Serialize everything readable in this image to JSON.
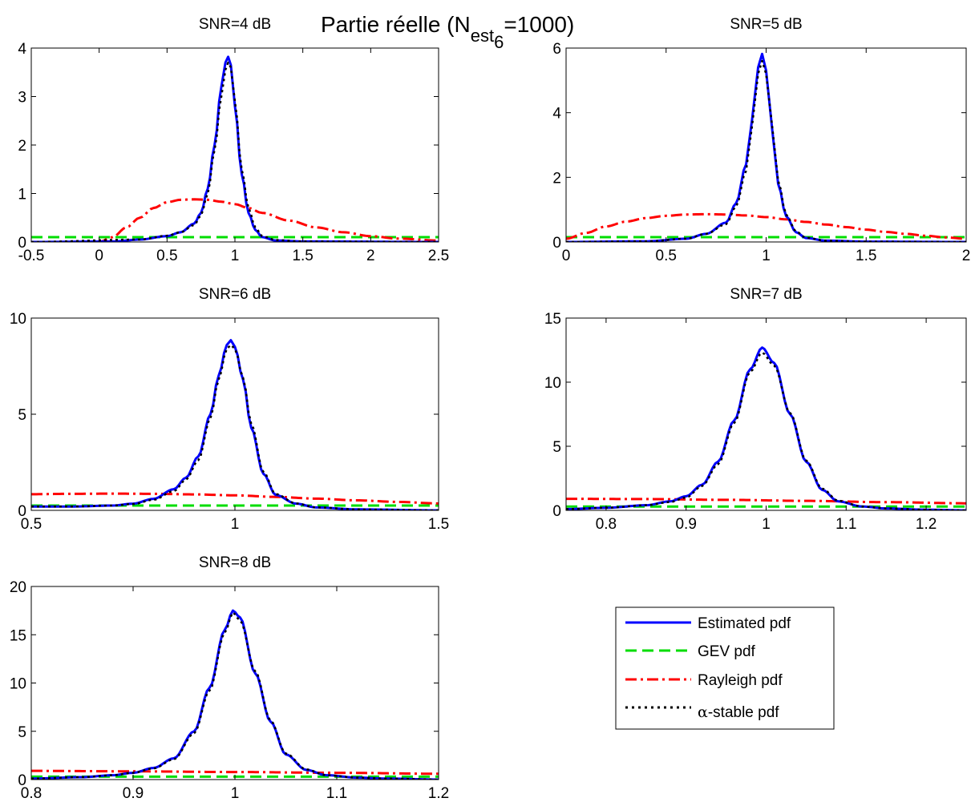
{
  "figure": {
    "suptitle": {
      "main": "Partie réelle (N",
      "sub1": "est",
      "sub2": "6",
      "tail": "=1000)"
    }
  },
  "legend": {
    "entries": [
      {
        "label_pre": "",
        "label": "Estimated pdf",
        "color": "#0000ff",
        "style": "solid"
      },
      {
        "label_pre": "",
        "label": "GEV pdf",
        "color": "#00dd00",
        "style": "dashed"
      },
      {
        "label_pre": "",
        "label": "Rayleigh pdf",
        "color": "#ff0000",
        "style": "dashdot"
      },
      {
        "label_pre": "α",
        "label": "-stable pdf",
        "color": "#000000",
        "style": "dotted"
      }
    ]
  },
  "chart_data": [
    {
      "type": "line",
      "title": "SNR=4 dB",
      "xlim": [
        -0.5,
        2.5
      ],
      "ylim": [
        0,
        4
      ],
      "xticks": [
        -0.5,
        0,
        0.5,
        1,
        1.5,
        2,
        2.5
      ],
      "yticks": [
        0,
        1,
        2,
        3,
        4
      ],
      "peak": {
        "center": 0.95,
        "height": 3.82,
        "width": 0.09
      },
      "series": [
        {
          "name": "Estimated pdf",
          "x": [
            -0.5,
            0.1,
            0.3,
            0.5,
            0.6,
            0.7,
            0.75,
            0.8,
            0.85,
            0.9,
            0.93,
            0.95,
            0.97,
            1.0,
            1.05,
            1.1,
            1.15,
            1.2,
            1.3,
            1.5,
            2.5
          ],
          "y": [
            0,
            0.01,
            0.05,
            0.12,
            0.2,
            0.38,
            0.6,
            1.1,
            2.0,
            3.2,
            3.7,
            3.82,
            3.65,
            2.8,
            1.4,
            0.6,
            0.25,
            0.1,
            0.03,
            0.01,
            0
          ]
        },
        {
          "name": "GEV pdf",
          "x": [
            -0.5,
            1,
            2.5
          ],
          "y": [
            0.1,
            0.1,
            0.1
          ]
        },
        {
          "name": "Rayleigh pdf",
          "x": [
            -0.5,
            0,
            0.1,
            0.2,
            0.3,
            0.4,
            0.5,
            0.6,
            0.7,
            0.8,
            0.9,
            1.0,
            1.1,
            1.2,
            1.4,
            1.6,
            1.8,
            2.0,
            2.2,
            2.5
          ],
          "y": [
            0,
            0,
            0.1,
            0.3,
            0.5,
            0.7,
            0.82,
            0.87,
            0.88,
            0.87,
            0.83,
            0.78,
            0.7,
            0.6,
            0.44,
            0.3,
            0.2,
            0.12,
            0.07,
            0.03
          ]
        },
        {
          "name": "α-stable pdf",
          "x": [
            -0.5,
            0.3,
            0.5,
            0.6,
            0.7,
            0.75,
            0.8,
            0.85,
            0.9,
            0.93,
            0.95,
            0.97,
            1.0,
            1.05,
            1.1,
            1.15,
            1.2,
            1.3,
            1.5,
            2.5
          ],
          "y": [
            0,
            0.05,
            0.13,
            0.2,
            0.35,
            0.55,
            1.0,
            1.9,
            3.0,
            3.55,
            3.7,
            3.6,
            2.9,
            1.5,
            0.7,
            0.3,
            0.12,
            0.04,
            0.01,
            0
          ]
        }
      ]
    },
    {
      "type": "line",
      "title": "SNR=5 dB",
      "xlim": [
        0,
        2
      ],
      "ylim": [
        0,
        6
      ],
      "xticks": [
        0,
        0.5,
        1,
        1.5,
        2
      ],
      "yticks": [
        0,
        2,
        4,
        6
      ],
      "peak": {
        "center": 0.98,
        "height": 5.8,
        "width": 0.06
      },
      "series": [
        {
          "name": "Estimated pdf",
          "x": [
            0,
            0.4,
            0.6,
            0.7,
            0.8,
            0.85,
            0.9,
            0.93,
            0.96,
            0.98,
            1.0,
            1.03,
            1.06,
            1.1,
            1.15,
            1.2,
            1.3,
            1.5,
            2.0
          ],
          "y": [
            0,
            0.02,
            0.1,
            0.25,
            0.6,
            1.2,
            2.4,
            3.8,
            5.4,
            5.82,
            5.3,
            3.5,
            1.8,
            0.8,
            0.3,
            0.12,
            0.04,
            0.01,
            0
          ]
        },
        {
          "name": "GEV pdf",
          "x": [
            0,
            1,
            2
          ],
          "y": [
            0.15,
            0.15,
            0.15
          ]
        },
        {
          "name": "Rayleigh pdf",
          "x": [
            0,
            0.1,
            0.2,
            0.3,
            0.4,
            0.5,
            0.6,
            0.7,
            0.8,
            0.9,
            1.0,
            1.1,
            1.2,
            1.3,
            1.4,
            1.5,
            1.6,
            1.7,
            1.8,
            1.9,
            2.0
          ],
          "y": [
            0.1,
            0.28,
            0.48,
            0.63,
            0.74,
            0.81,
            0.85,
            0.86,
            0.85,
            0.82,
            0.77,
            0.7,
            0.62,
            0.54,
            0.46,
            0.38,
            0.31,
            0.25,
            0.19,
            0.14,
            0.1
          ]
        },
        {
          "name": "α-stable pdf",
          "x": [
            0,
            0.4,
            0.6,
            0.7,
            0.8,
            0.85,
            0.9,
            0.93,
            0.96,
            0.98,
            1.0,
            1.03,
            1.06,
            1.1,
            1.15,
            1.2,
            1.3,
            1.5,
            2.0
          ],
          "y": [
            0,
            0.02,
            0.1,
            0.25,
            0.55,
            1.1,
            2.2,
            3.6,
            5.2,
            5.6,
            5.2,
            3.6,
            1.9,
            0.85,
            0.32,
            0.13,
            0.04,
            0.01,
            0
          ]
        }
      ]
    },
    {
      "type": "line",
      "title": "SNR=6 dB",
      "xlim": [
        0.5,
        1.5
      ],
      "ylim": [
        0,
        10
      ],
      "xticks": [
        0.5,
        1,
        1.5
      ],
      "yticks": [
        0,
        5,
        10
      ],
      "peak": {
        "center": 0.99,
        "height": 8.8,
        "width": 0.04
      },
      "series": [
        {
          "name": "Estimated pdf",
          "x": [
            0.5,
            0.6,
            0.7,
            0.75,
            0.8,
            0.85,
            0.88,
            0.91,
            0.94,
            0.96,
            0.98,
            0.99,
            1.0,
            1.02,
            1.04,
            1.07,
            1.1,
            1.15,
            1.2,
            1.3,
            1.5
          ],
          "y": [
            0.2,
            0.2,
            0.25,
            0.35,
            0.6,
            1.1,
            1.7,
            2.8,
            5.0,
            7.0,
            8.6,
            8.85,
            8.5,
            6.8,
            4.3,
            1.9,
            0.8,
            0.35,
            0.15,
            0.05,
            0
          ]
        },
        {
          "name": "GEV pdf",
          "x": [
            0.5,
            1.0,
            1.5
          ],
          "y": [
            0.25,
            0.25,
            0.25
          ]
        },
        {
          "name": "Rayleigh pdf",
          "x": [
            0.5,
            0.6,
            0.7,
            0.8,
            0.9,
            1.0,
            1.1,
            1.2,
            1.3,
            1.4,
            1.5
          ],
          "y": [
            0.84,
            0.86,
            0.87,
            0.86,
            0.83,
            0.78,
            0.7,
            0.61,
            0.52,
            0.44,
            0.36
          ]
        },
        {
          "name": "α-stable pdf",
          "x": [
            0.5,
            0.6,
            0.7,
            0.75,
            0.8,
            0.85,
            0.88,
            0.91,
            0.94,
            0.96,
            0.98,
            0.99,
            1.0,
            1.02,
            1.04,
            1.07,
            1.1,
            1.15,
            1.2,
            1.3,
            1.5
          ],
          "y": [
            0.2,
            0.2,
            0.25,
            0.33,
            0.55,
            1.0,
            1.6,
            2.6,
            4.8,
            6.8,
            8.4,
            8.6,
            8.4,
            6.9,
            4.5,
            2.0,
            0.85,
            0.36,
            0.15,
            0.05,
            0
          ]
        }
      ]
    },
    {
      "type": "line",
      "title": "SNR=7 dB",
      "xlim": [
        0.75,
        1.25
      ],
      "ylim": [
        0,
        15
      ],
      "xticks": [
        0.8,
        0.9,
        1.0,
        1.1,
        1.2
      ],
      "yticks": [
        0,
        5,
        10,
        15
      ],
      "peak": {
        "center": 0.995,
        "height": 12.7,
        "width": 0.025
      },
      "series": [
        {
          "name": "Estimated pdf",
          "x": [
            0.75,
            0.8,
            0.85,
            0.88,
            0.9,
            0.92,
            0.94,
            0.96,
            0.98,
            0.995,
            1.01,
            1.03,
            1.05,
            1.07,
            1.09,
            1.12,
            1.15,
            1.2,
            1.25
          ],
          "y": [
            0.1,
            0.2,
            0.4,
            0.7,
            1.1,
            2.0,
            3.8,
            7.0,
            11.0,
            12.7,
            11.5,
            7.5,
            3.8,
            1.6,
            0.7,
            0.3,
            0.15,
            0.05,
            0
          ]
        },
        {
          "name": "GEV pdf",
          "x": [
            0.75,
            1.0,
            1.25
          ],
          "y": [
            0.3,
            0.3,
            0.3
          ]
        },
        {
          "name": "Rayleigh pdf",
          "x": [
            0.75,
            0.85,
            0.95,
            1.05,
            1.15,
            1.25
          ],
          "y": [
            0.9,
            0.88,
            0.82,
            0.74,
            0.64,
            0.55
          ]
        },
        {
          "name": "α-stable pdf",
          "x": [
            0.75,
            0.8,
            0.85,
            0.88,
            0.9,
            0.92,
            0.94,
            0.96,
            0.98,
            0.995,
            1.01,
            1.03,
            1.05,
            1.07,
            1.09,
            1.12,
            1.15,
            1.2,
            1.25
          ],
          "y": [
            0.1,
            0.2,
            0.4,
            0.65,
            1.0,
            1.9,
            3.6,
            6.8,
            10.8,
            12.3,
            11.3,
            7.6,
            3.9,
            1.7,
            0.75,
            0.3,
            0.15,
            0.05,
            0
          ]
        }
      ]
    },
    {
      "type": "line",
      "title": "SNR=8 dB",
      "xlim": [
        0.8,
        1.2
      ],
      "ylim": [
        0,
        20
      ],
      "xticks": [
        0.8,
        0.9,
        1.0,
        1.1,
        1.2
      ],
      "yticks": [
        0,
        5,
        10,
        15,
        20
      ],
      "peak": {
        "center": 0.998,
        "height": 17.5,
        "width": 0.02
      },
      "series": [
        {
          "name": "Estimated pdf",
          "x": [
            0.8,
            0.85,
            0.88,
            0.9,
            0.92,
            0.94,
            0.96,
            0.975,
            0.99,
            0.998,
            1.005,
            1.02,
            1.035,
            1.05,
            1.07,
            1.09,
            1.12,
            1.15,
            1.2
          ],
          "y": [
            0.1,
            0.25,
            0.45,
            0.7,
            1.2,
            2.2,
            5.0,
            9.5,
            15.5,
            17.5,
            16.8,
            11.0,
            6.0,
            2.6,
            1.0,
            0.45,
            0.2,
            0.1,
            0
          ]
        },
        {
          "name": "GEV pdf",
          "x": [
            0.8,
            1.0,
            1.2
          ],
          "y": [
            0.3,
            0.3,
            0.3
          ]
        },
        {
          "name": "Rayleigh pdf",
          "x": [
            0.8,
            0.9,
            1.0,
            1.1,
            1.2
          ],
          "y": [
            0.9,
            0.85,
            0.78,
            0.7,
            0.6
          ]
        },
        {
          "name": "α-stable pdf",
          "x": [
            0.8,
            0.85,
            0.88,
            0.9,
            0.92,
            0.94,
            0.96,
            0.975,
            0.99,
            0.998,
            1.005,
            1.02,
            1.035,
            1.05,
            1.07,
            1.09,
            1.12,
            1.15,
            1.2
          ],
          "y": [
            0.1,
            0.25,
            0.45,
            0.7,
            1.15,
            2.1,
            4.8,
            9.2,
            15.2,
            17.3,
            16.5,
            11.2,
            6.1,
            2.7,
            1.05,
            0.45,
            0.2,
            0.1,
            0
          ]
        }
      ]
    }
  ]
}
